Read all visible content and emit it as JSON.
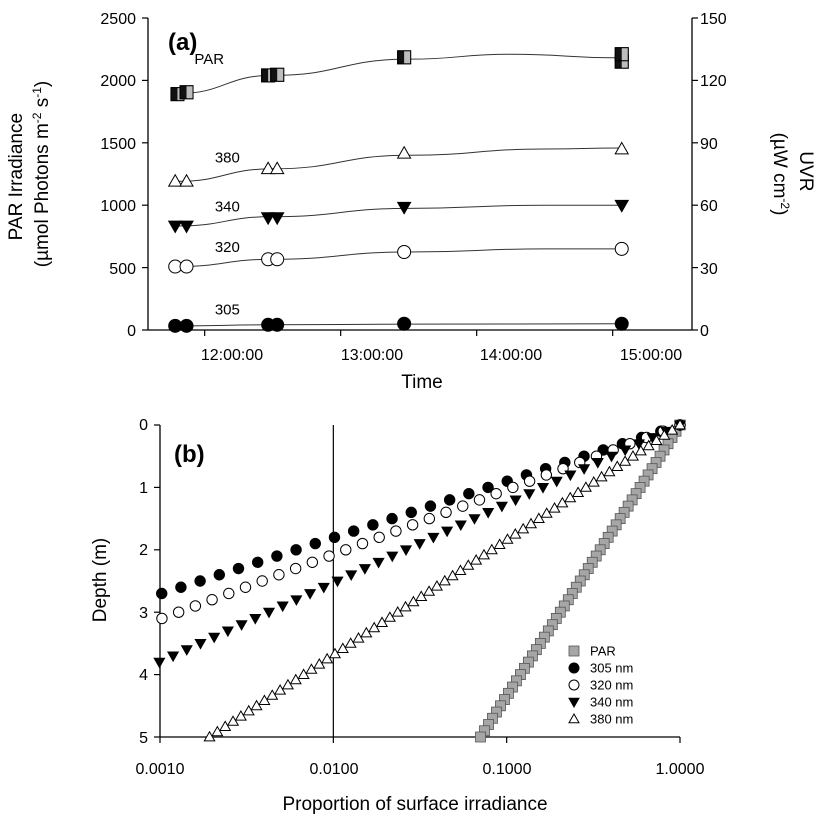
{
  "chart_data": [
    {
      "type": "scatter",
      "panel_label": "(a)",
      "xlabel": "Time",
      "ylabel_left_line1": "PAR Irradiance",
      "ylabel_left_line2_parts": [
        "(µmol Photons m",
        "-2",
        " s",
        "-1",
        ")"
      ],
      "ylabel_right_line1": "UVR",
      "ylabel_right_line2_parts": [
        "(µW cm",
        "-2",
        ")"
      ],
      "xlim": [
        "11:35:00",
        "15:35:00"
      ],
      "xticks": [
        "12:00:00",
        "13:00:00",
        "14:00:00",
        "15:00:00"
      ],
      "ylim_left": [
        0,
        2500
      ],
      "yticks_left": [
        "0",
        "500",
        "1000",
        "1500",
        "2000",
        "2500"
      ],
      "ylim_right": [
        0,
        150
      ],
      "yticks_right": [
        "0",
        "30",
        "60",
        "90",
        "120",
        "150"
      ],
      "series": [
        {
          "name": "PAR",
          "axis": "left",
          "marker": "square-split",
          "points": [
            [
              "11:48",
              1890
            ],
            [
              "11:52",
              1905
            ],
            [
              "12:28",
              2040
            ],
            [
              "12:32",
              2045
            ],
            [
              "13:28",
              2185
            ],
            [
              "15:04",
              2150
            ],
            [
              "15:04",
              2210
            ]
          ],
          "fit": [
            [
              "11:48",
              1895
            ],
            [
              "12:30",
              2040
            ],
            [
              "13:30",
              2170
            ],
            [
              "14:15",
              2210
            ],
            [
              "15:04",
              2180
            ]
          ]
        },
        {
          "name": "380",
          "axis": "right",
          "marker": "triangle-open",
          "points": [
            [
              "11:47",
              71.5
            ],
            [
              "11:52",
              71.5
            ],
            [
              "12:28",
              77.5
            ],
            [
              "12:32",
              77.5
            ],
            [
              "13:28",
              85
            ],
            [
              "15:04",
              87
            ]
          ],
          "fit": [
            [
              "11:48",
              71.5
            ],
            [
              "12:30",
              77.5
            ],
            [
              "13:30",
              84
            ],
            [
              "14:30",
              87
            ],
            [
              "15:04",
              87.5
            ]
          ]
        },
        {
          "name": "340",
          "axis": "right",
          "marker": "triangle-down-filled",
          "points": [
            [
              "11:47",
              50
            ],
            [
              "11:52",
              50
            ],
            [
              "12:28",
              54
            ],
            [
              "12:32",
              54
            ],
            [
              "13:28",
              59
            ],
            [
              "15:04",
              60
            ]
          ],
          "fit": [
            [
              "11:48",
              50
            ],
            [
              "12:30",
              54.5
            ],
            [
              "13:30",
              58.5
            ],
            [
              "14:30",
              60
            ],
            [
              "15:04",
              60
            ]
          ]
        },
        {
          "name": "320",
          "axis": "right",
          "marker": "circle-open",
          "points": [
            [
              "11:47",
              30.5
            ],
            [
              "11:52",
              30.5
            ],
            [
              "12:28",
              34
            ],
            [
              "12:32",
              34
            ],
            [
              "13:28",
              37.5
            ],
            [
              "15:04",
              39
            ]
          ],
          "fit": [
            [
              "11:48",
              30.5
            ],
            [
              "12:30",
              34
            ],
            [
              "13:30",
              37.5
            ],
            [
              "14:30",
              39
            ],
            [
              "15:04",
              39
            ]
          ]
        },
        {
          "name": "305",
          "axis": "right",
          "marker": "circle-filled",
          "points": [
            [
              "11:47",
              2
            ],
            [
              "11:52",
              2
            ],
            [
              "12:28",
              2.5
            ],
            [
              "12:32",
              2.5
            ],
            [
              "13:28",
              3
            ],
            [
              "15:04",
              3
            ]
          ],
          "fit": [
            [
              "11:48",
              2
            ],
            [
              "12:30",
              2.5
            ],
            [
              "13:30",
              2.8
            ],
            [
              "15:04",
              3
            ]
          ]
        }
      ]
    },
    {
      "type": "scatter",
      "panel_label": "(b)",
      "xlabel": "Proportion of surface irradiance",
      "ylabel": "Depth (m)",
      "xscale": "log",
      "xlim": [
        0.001,
        1.0
      ],
      "xticks": [
        "0.0010",
        "0.0100",
        "0.1000",
        "1.0000"
      ],
      "ylim": [
        0,
        5
      ],
      "yticks": [
        "0",
        "1",
        "2",
        "3",
        "4",
        "5"
      ],
      "y_inverted": true,
      "reference_line_x": 0.01,
      "legend": {
        "placement": "bottom-right",
        "entries": [
          "PAR",
          "305 nm",
          "320 nm",
          "340 nm",
          "380 nm"
        ]
      },
      "series": [
        {
          "name": "PAR",
          "marker": "square-gray",
          "kd": 0.53,
          "depth_max": 5.0,
          "surface": 1.0
        },
        {
          "name": "305 nm",
          "marker": "circle-filled",
          "kd": 2.55,
          "depth_max": 2.7,
          "surface": 1.0
        },
        {
          "name": "320 nm",
          "marker": "circle-open",
          "kd": 2.22,
          "depth_max": 3.1,
          "surface": 1.0
        },
        {
          "name": "340 nm",
          "marker": "triangle-down-filled",
          "kd": 1.82,
          "depth_max": 3.8,
          "surface": 1.0
        },
        {
          "name": "380 nm",
          "marker": "triangle-open",
          "kd": 1.25,
          "depth_max": 5.0,
          "surface": 1.0
        }
      ]
    }
  ]
}
